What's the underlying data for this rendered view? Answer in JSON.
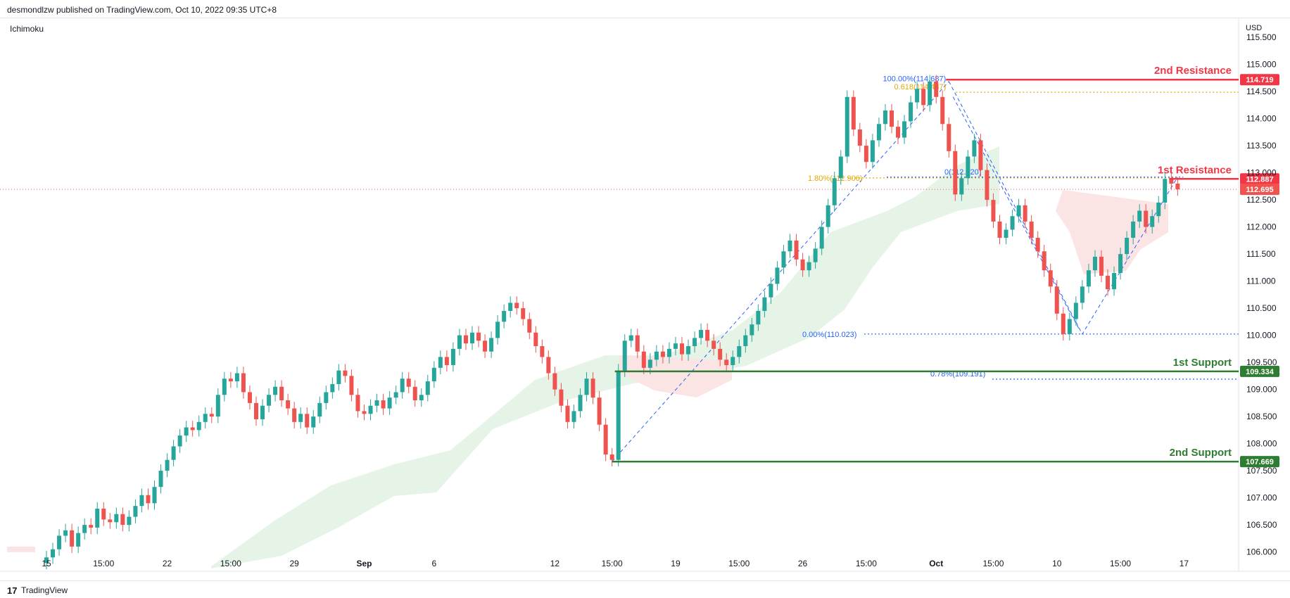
{
  "header": {
    "publish_line": "desmondlzw published on TradingView.com, Oct 10, 2022 09:35 UTC+8"
  },
  "indicator": "Ichimoku",
  "currency": "USD",
  "footer": {
    "brand_logo": "17",
    "brand_name": "TradingView"
  },
  "colors": {
    "bull": "#26a69a",
    "bear": "#ef5350",
    "resistance": "#f23645",
    "support": "#2e7d32",
    "fib_blue": "#2962ff",
    "fib_gold": "#e6a700",
    "cloud_bull": "#e6f4e8",
    "cloud_bear": "#fbe4e4",
    "current_price_line": "#ef5350"
  },
  "chart_data": {
    "type": "candlestick",
    "symbol_quote": "USD",
    "ylim": [
      105.8,
      115.8
    ],
    "y_ticks": [
      "106.000",
      "106.500",
      "107.000",
      "107.500",
      "108.000",
      "108.500",
      "109.000",
      "109.500",
      "110.000",
      "110.500",
      "111.000",
      "111.500",
      "112.000",
      "112.500",
      "113.000",
      "113.500",
      "114.000",
      "114.500",
      "115.000",
      "115.500"
    ],
    "x_ticks": [
      {
        "label": "15",
        "bar": 0
      },
      {
        "label": "15:00",
        "bar": 9
      },
      {
        "label": "22",
        "bar": 19
      },
      {
        "label": "15:00",
        "bar": 29
      },
      {
        "label": "29",
        "bar": 39
      },
      {
        "label": "Sep",
        "bar": 50
      },
      {
        "label": "6",
        "bar": 61
      },
      {
        "label": "12",
        "bar": 80
      },
      {
        "label": "15:00",
        "bar": 89
      },
      {
        "label": "19",
        "bar": 99
      },
      {
        "label": "15:00",
        "bar": 109
      },
      {
        "label": "26",
        "bar": 119
      },
      {
        "label": "15:00",
        "bar": 129
      },
      {
        "label": "Oct",
        "bar": 140
      },
      {
        "label": "15:00",
        "bar": 149
      },
      {
        "label": "10",
        "bar": 159
      },
      {
        "label": "15:00",
        "bar": 169
      },
      {
        "label": "17",
        "bar": 179
      }
    ],
    "candle_closes": [
      105.9,
      106.05,
      106.3,
      106.4,
      106.1,
      106.35,
      106.5,
      106.45,
      106.8,
      106.6,
      106.55,
      106.7,
      106.5,
      106.65,
      106.85,
      107.05,
      106.9,
      107.2,
      107.5,
      107.7,
      107.95,
      108.15,
      108.3,
      108.25,
      108.4,
      108.55,
      108.5,
      108.9,
      109.2,
      109.15,
      109.3,
      108.95,
      108.75,
      108.45,
      108.7,
      108.9,
      109.05,
      108.8,
      108.65,
      108.4,
      108.55,
      108.3,
      108.5,
      108.75,
      108.95,
      109.1,
      109.35,
      109.25,
      108.9,
      108.6,
      108.55,
      108.7,
      108.8,
      108.65,
      108.85,
      108.95,
      109.2,
      109.05,
      108.8,
      108.9,
      109.15,
      109.4,
      109.6,
      109.45,
      109.75,
      110.0,
      109.85,
      110.05,
      109.9,
      109.7,
      109.95,
      110.25,
      110.45,
      110.6,
      110.5,
      110.3,
      110.05,
      109.8,
      109.6,
      109.3,
      109.0,
      108.7,
      108.4,
      108.6,
      108.9,
      109.2,
      108.85,
      108.35,
      107.8,
      107.7,
      109.35,
      109.9,
      110.0,
      109.7,
      109.4,
      109.55,
      109.7,
      109.6,
      109.75,
      109.85,
      109.65,
      109.8,
      109.95,
      110.1,
      109.9,
      109.75,
      109.55,
      109.45,
      109.6,
      109.8,
      110.0,
      110.2,
      110.45,
      110.7,
      110.95,
      111.25,
      111.55,
      111.75,
      111.4,
      111.2,
      111.35,
      111.6,
      112.0,
      112.4,
      112.9,
      113.3,
      114.4,
      113.8,
      113.5,
      113.2,
      113.6,
      113.9,
      114.15,
      113.85,
      113.65,
      113.95,
      114.3,
      114.55,
      114.25,
      114.687,
      114.4,
      113.9,
      113.4,
      112.6,
      112.9,
      113.3,
      113.6,
      113.05,
      112.5,
      112.1,
      111.8,
      111.95,
      112.2,
      112.4,
      112.1,
      111.8,
      111.55,
      111.2,
      110.9,
      110.4,
      110.023,
      110.3,
      110.6,
      110.9,
      111.2,
      111.45,
      111.1,
      110.85,
      111.15,
      111.5,
      111.8,
      112.1,
      112.3,
      112.0,
      112.2,
      112.45,
      112.887,
      112.8,
      112.695
    ],
    "series": [
      {
        "name": "USD",
        "type": "candlestick"
      }
    ],
    "levels": [
      {
        "name": "2nd Resistance",
        "value": 114.719,
        "tag": "114.719",
        "kind": "resistance"
      },
      {
        "name": "1st Resistance",
        "value": 112.887,
        "tag": "112.887",
        "kind": "resistance"
      },
      {
        "name": "1st Support",
        "value": 109.334,
        "tag": "109.334",
        "kind": "support"
      },
      {
        "name": "2nd Support",
        "value": 107.669,
        "tag": "107.669",
        "kind": "support"
      }
    ],
    "current_price": {
      "value": 112.695,
      "tag": "112.695"
    },
    "fib_labels": [
      {
        "text": "100.00%(114.687)",
        "value": 114.687,
        "color": "blue"
      },
      {
        "text": "0.618(114.487)",
        "value": 114.487,
        "color": "gold"
      },
      {
        "text": "0(112.920)",
        "value": 112.92,
        "color": "blue"
      },
      {
        "text": "1.80%(112.906)",
        "value": 112.906,
        "color": "gold"
      },
      {
        "text": "0.00%(110.023)",
        "value": 110.023,
        "color": "blue"
      },
      {
        "text": "0.78%(109.191)",
        "value": 109.191,
        "color": "blue"
      }
    ],
    "grid": false,
    "legend": "none"
  }
}
